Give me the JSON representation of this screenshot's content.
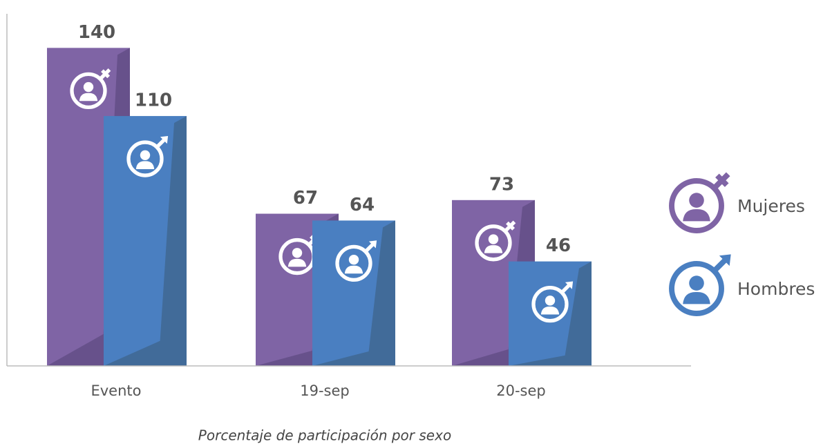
{
  "chart_data": {
    "type": "bar",
    "caption": "Porcentaje de participación por sexo",
    "categories": [
      "Evento",
      "19-sep",
      "20-sep"
    ],
    "series": [
      {
        "name": "Mujeres",
        "color": "#7f64a5",
        "values": [
          140,
          67,
          73
        ]
      },
      {
        "name": "Hombres",
        "color": "#4a7fc1",
        "values": [
          110,
          64,
          46
        ]
      }
    ],
    "ylim": [
      0,
      155
    ],
    "legend": "right"
  }
}
